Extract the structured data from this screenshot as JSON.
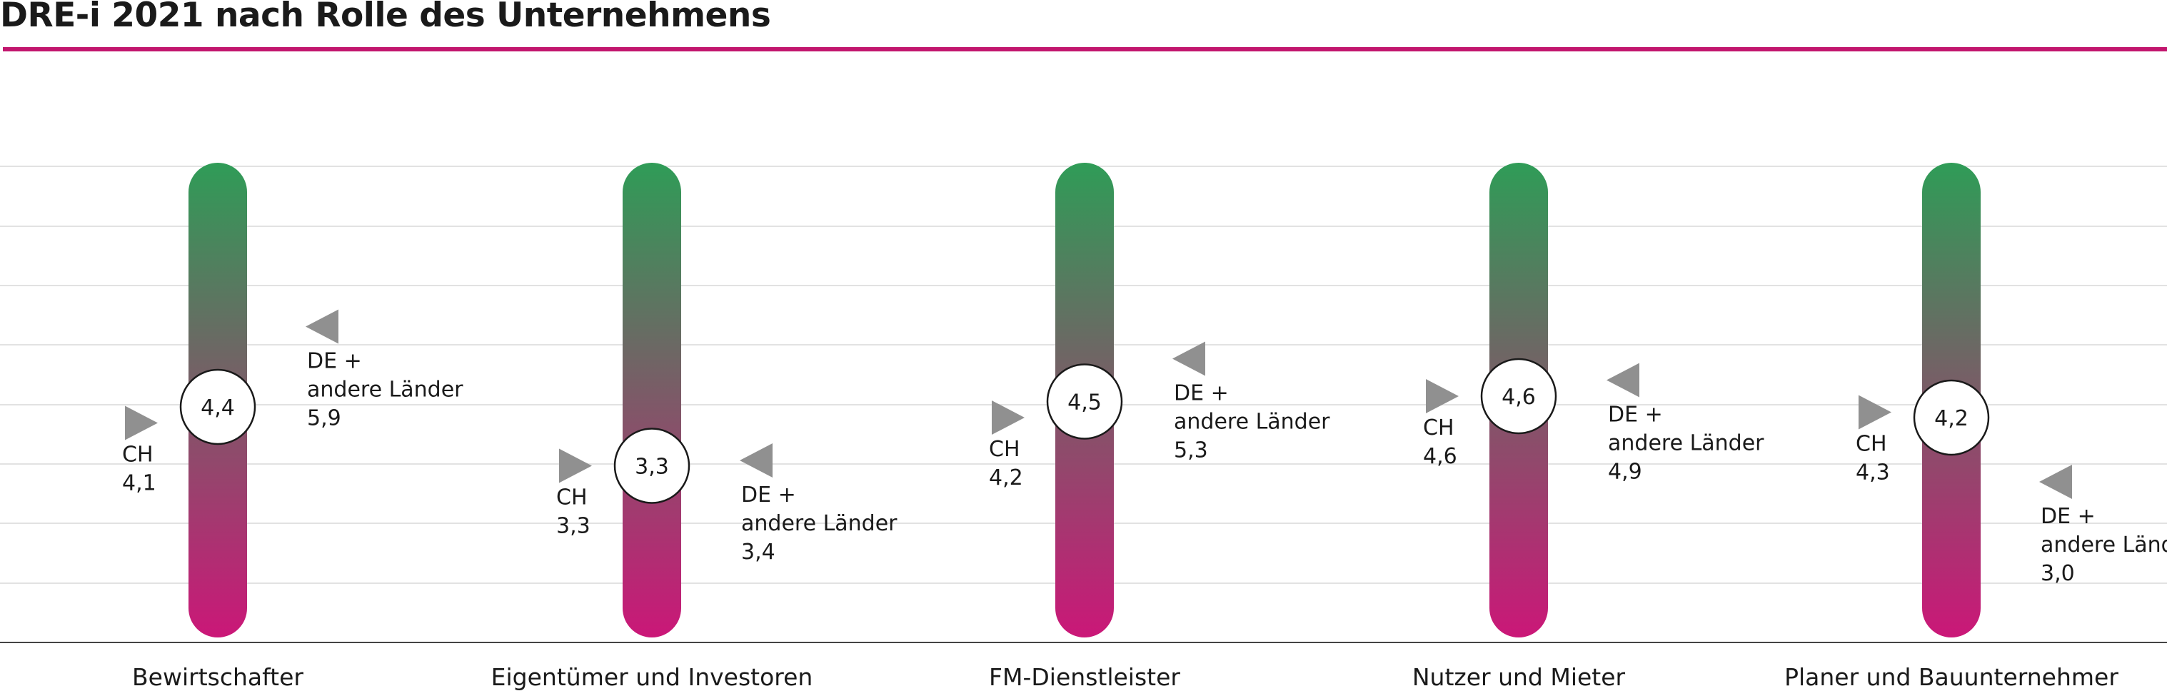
{
  "title": "DRE-i 2021 nach Rolle des Unternehmens",
  "colors": {
    "accent": "#c2166e",
    "bar_top": "#2f9c57",
    "bar_bottom": "#cb1778",
    "marker": "#909090",
    "grid": "#e2e2e2",
    "baseline": "#444444"
  },
  "labels": {
    "ch": "CH",
    "de_line1": "DE +",
    "de_line2": "andere Länder"
  },
  "chart_data": {
    "type": "dot-range",
    "title": "DRE-i 2021 nach Rolle des Unternehmens",
    "categories": [
      "Bewirtschafter",
      "Eigentümer und Investoren",
      "FM-Dienstleister",
      "Nutzer und Mieter",
      "Planer und Bauunternehmer"
    ],
    "series": [
      {
        "name": "",
        "values": [
          4.4,
          3.3,
          4.5,
          4.6,
          4.2
        ],
        "display": [
          "4,4",
          "3,3",
          "4,5",
          "4,6",
          "4,2"
        ]
      },
      {
        "name": "CH",
        "values": [
          4.1,
          3.3,
          4.2,
          4.6,
          4.3
        ],
        "display": [
          "4,1",
          "3,3",
          "4,2",
          "4,6",
          "4,3"
        ]
      },
      {
        "name": "DE + andere Länder",
        "values": [
          5.9,
          3.4,
          5.3,
          4.9,
          3.0
        ],
        "display": [
          "5,9",
          "3,4",
          "5,3",
          "4,9",
          "3,0"
        ]
      }
    ],
    "ylim": [
      0,
      10
    ],
    "grid": true,
    "gridlines": 8
  }
}
